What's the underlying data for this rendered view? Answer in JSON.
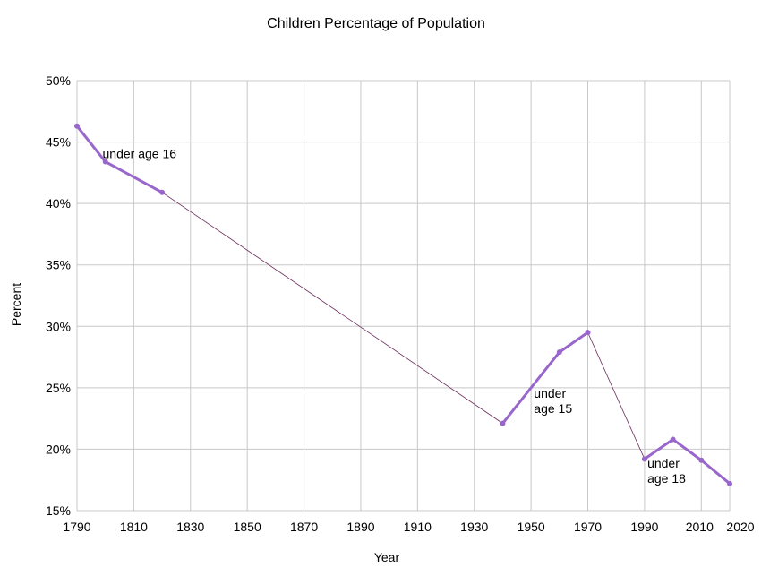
{
  "chart_data": {
    "type": "line",
    "title": "Children Percentage of Population",
    "xlabel": "Year",
    "ylabel": "Percent",
    "x_ticks": [
      1790,
      1810,
      1830,
      1850,
      1870,
      1890,
      1910,
      1930,
      1950,
      1970,
      1990,
      2010,
      2020
    ],
    "y_ticks": [
      "15%",
      "20%",
      "25%",
      "30%",
      "35%",
      "40%",
      "45%",
      "50%"
    ],
    "ylim": [
      15,
      50
    ],
    "xlim": [
      1790,
      2020
    ],
    "grid": true,
    "line_color": "#9966cc",
    "connector_color": "#6b2d5b",
    "segments": [
      {
        "x": [
          1790,
          1800,
          1820
        ],
        "y": [
          46.3,
          43.4,
          40.9
        ]
      },
      {
        "x": [
          1940,
          1960,
          1970
        ],
        "y": [
          22.1,
          27.9,
          29.5
        ]
      },
      {
        "x": [
          1990,
          2000,
          2010,
          2020
        ],
        "y": [
          19.2,
          20.8,
          19.1,
          17.2
        ]
      }
    ],
    "connectors": [
      {
        "x": [
          1820,
          1940
        ],
        "y": [
          40.9,
          22.1
        ]
      },
      {
        "x": [
          1970,
          1990
        ],
        "y": [
          29.5,
          19.2
        ]
      }
    ],
    "annotations": [
      {
        "lines": [
          "under age 16"
        ],
        "x": 1799,
        "y": 43.7
      },
      {
        "lines": [
          "under",
          "age 15"
        ],
        "x": 1951,
        "y": 24.2
      },
      {
        "lines": [
          "under",
          "age 18"
        ],
        "x": 1991,
        "y": 18.5
      }
    ]
  }
}
